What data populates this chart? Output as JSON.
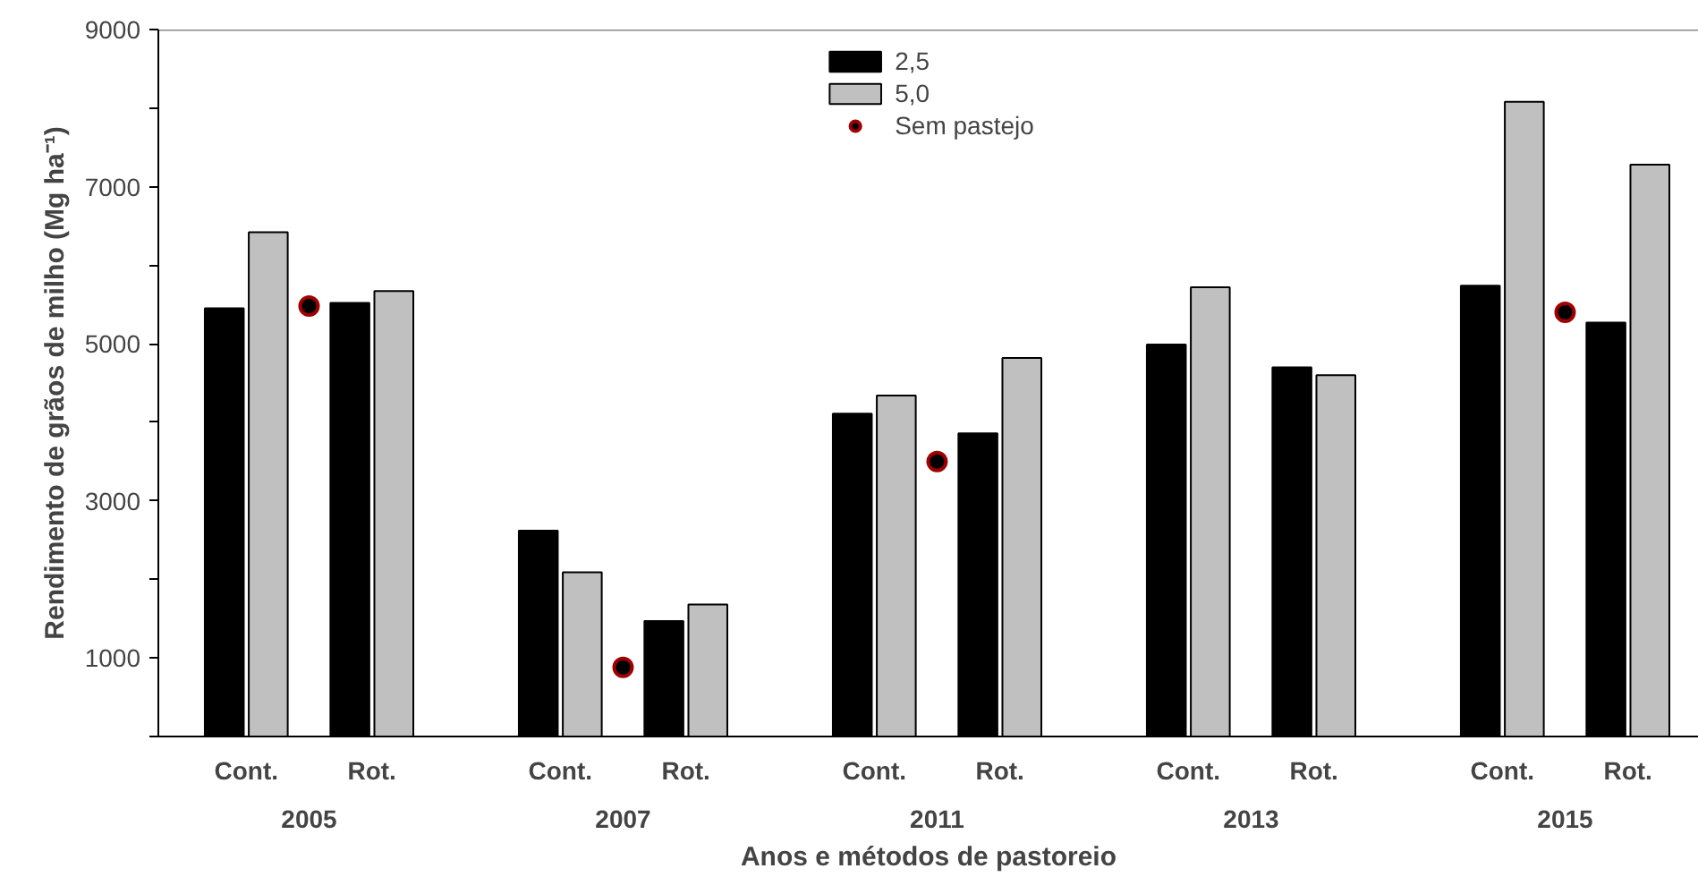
{
  "chart_data": {
    "type": "bar",
    "xlabel": "Anos e métodos de pastoreio",
    "ylabel": "Rendimento de grãos de milho (Mg ha⁻¹)",
    "categories": [
      "Cont.",
      null,
      "Rot.",
      null,
      null,
      "Cont.",
      null,
      "Rot.",
      null,
      null,
      "Cont.",
      null,
      "Rot.",
      null,
      null,
      "Cont.",
      null,
      "Rot.",
      null,
      null,
      "Cont.",
      null,
      "Rot."
    ],
    "annotations": [
      "2005",
      "2007",
      "2011",
      "2013",
      "2015"
    ],
    "series": [
      {
        "name": "2,5",
        "color": "#000000",
        "values": [
          5450,
          null,
          5520,
          null,
          null,
          2620,
          null,
          1470,
          null,
          null,
          4110,
          null,
          3860,
          null,
          null,
          4990,
          null,
          4700,
          null,
          null,
          5740,
          null,
          5270
        ]
      },
      {
        "name": "5,0",
        "color": "#c0c0c0",
        "values": [
          6420,
          null,
          5670,
          null,
          null,
          2090,
          null,
          1680,
          null,
          null,
          4340,
          null,
          4820,
          null,
          null,
          5720,
          null,
          4600,
          null,
          null,
          8080,
          null,
          7280
        ]
      },
      {
        "name": "Sem pastejo",
        "type": "scatter",
        "color": "#000000",
        "marker": "circle",
        "values": [
          null,
          5480,
          null,
          null,
          null,
          null,
          880,
          null,
          null,
          null,
          null,
          3500,
          null,
          null,
          null,
          null,
          null,
          null,
          null,
          null,
          null,
          5400,
          null
        ]
      }
    ],
    "ylim": [
      0,
      9000
    ],
    "yticks": [
      1000,
      3000,
      5000,
      7000,
      9000
    ],
    "grid": false,
    "legend": "top"
  }
}
